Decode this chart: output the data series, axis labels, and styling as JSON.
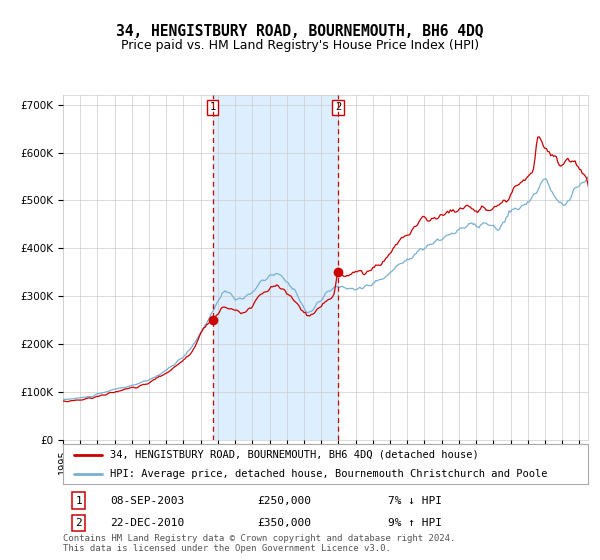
{
  "title": "34, HENGISTBURY ROAD, BOURNEMOUTH, BH6 4DQ",
  "subtitle": "Price paid vs. HM Land Registry's House Price Index (HPI)",
  "ylim": [
    0,
    720000
  ],
  "yticks": [
    0,
    100000,
    200000,
    300000,
    400000,
    500000,
    600000,
    700000
  ],
  "ytick_labels": [
    "£0",
    "£100K",
    "£200K",
    "£300K",
    "£400K",
    "£500K",
    "£600K",
    "£700K"
  ],
  "purchase1_year": 2003.69,
  "purchase1_price": 250000,
  "purchase2_year": 2010.98,
  "purchase2_price": 350000,
  "line_color_red": "#cc0000",
  "line_color_blue": "#7ab0d4",
  "shade_color": "#ddeeff",
  "grid_color": "#cccccc",
  "background_color": "#ffffff",
  "legend1_text": "34, HENGISTBURY ROAD, BOURNEMOUTH, BH6 4DQ (detached house)",
  "legend2_text": "HPI: Average price, detached house, Bournemouth Christchurch and Poole",
  "annotation1_date": "08-SEP-2003",
  "annotation1_price": "£250,000",
  "annotation1_pct": "7% ↓ HPI",
  "annotation2_date": "22-DEC-2010",
  "annotation2_price": "£350,000",
  "annotation2_pct": "9% ↑ HPI",
  "footer": "Contains HM Land Registry data © Crown copyright and database right 2024.\nThis data is licensed under the Open Government Licence v3.0.",
  "title_fontsize": 10.5,
  "subtitle_fontsize": 9,
  "tick_fontsize": 7.5,
  "legend_fontsize": 7.5,
  "annotation_fontsize": 8,
  "footer_fontsize": 6.5
}
